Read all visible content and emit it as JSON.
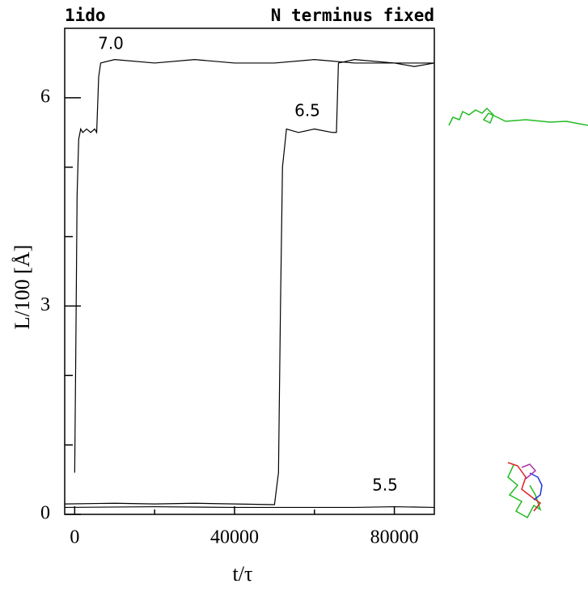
{
  "chart_data": {
    "type": "line",
    "title": "1ido",
    "subtitle": "N terminus fixed",
    "x_label": "t/τ",
    "y_label": "L/100 [Å]",
    "xlim": [
      -2500,
      90000
    ],
    "ylim": [
      0,
      7
    ],
    "xticks": [
      0,
      40000,
      80000
    ],
    "xminorticks": [
      20000,
      60000
    ],
    "yticks": [
      0,
      3,
      6
    ],
    "yminorticks": [
      1,
      2,
      4,
      5
    ],
    "annotations": [
      "7.0",
      "6.5",
      "5.5"
    ],
    "series": [
      {
        "color": "#000000",
        "x": [
          0,
          300,
          600,
          1000,
          1500,
          2000,
          3000,
          4000,
          5000,
          5500,
          6000,
          6500,
          10000,
          20000,
          30000,
          40000,
          50000,
          60000,
          70000,
          80000,
          85000,
          90000
        ],
        "values": [
          0.6,
          2.5,
          4.6,
          5.4,
          5.55,
          5.5,
          5.55,
          5.5,
          5.55,
          5.5,
          6.3,
          6.5,
          6.55,
          6.5,
          6.55,
          6.5,
          6.5,
          6.55,
          6.5,
          6.5,
          6.45,
          6.5
        ]
      },
      {
        "color": "#000000",
        "x": [
          -2500,
          10000,
          20000,
          30000,
          40000,
          50000,
          51000,
          51500,
          52000,
          53000,
          56000,
          60000,
          64500,
          65500,
          66000,
          70000,
          80000,
          90000
        ],
        "values": [
          0.15,
          0.16,
          0.15,
          0.16,
          0.15,
          0.14,
          0.6,
          3,
          5.0,
          5.55,
          5.5,
          5.55,
          5.5,
          5.5,
          6.5,
          6.55,
          6.5,
          6.5
        ]
      },
      {
        "color": "#000000",
        "x": [
          -2500,
          20000,
          40000,
          50000,
          60000,
          70000,
          80000,
          90000
        ],
        "values": [
          0.1,
          0.11,
          0.1,
          0.1,
          0.1,
          0.1,
          0.11,
          0.1
        ]
      }
    ]
  }
}
